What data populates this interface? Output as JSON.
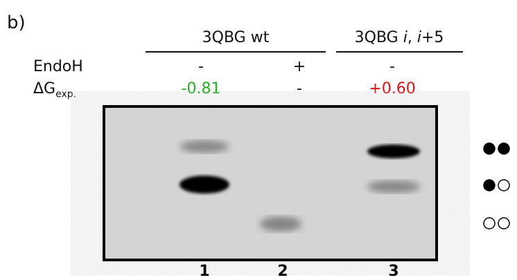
{
  "panel_label": "b)",
  "groups": [
    {
      "label_parts": [
        "3QBG wt"
      ]
    },
    {
      "label_parts": [
        "3QBG ",
        "i",
        ", ",
        "i",
        "+5"
      ]
    }
  ],
  "rows": [
    {
      "label": "EndoH",
      "cells": [
        "-",
        "+",
        "-"
      ]
    },
    {
      "label": "ΔG",
      "label_sub": "exp.",
      "cells": [
        "-0.81",
        "-",
        "+0.60"
      ]
    }
  ],
  "lanes": [
    "1",
    "2",
    "3"
  ]
}
